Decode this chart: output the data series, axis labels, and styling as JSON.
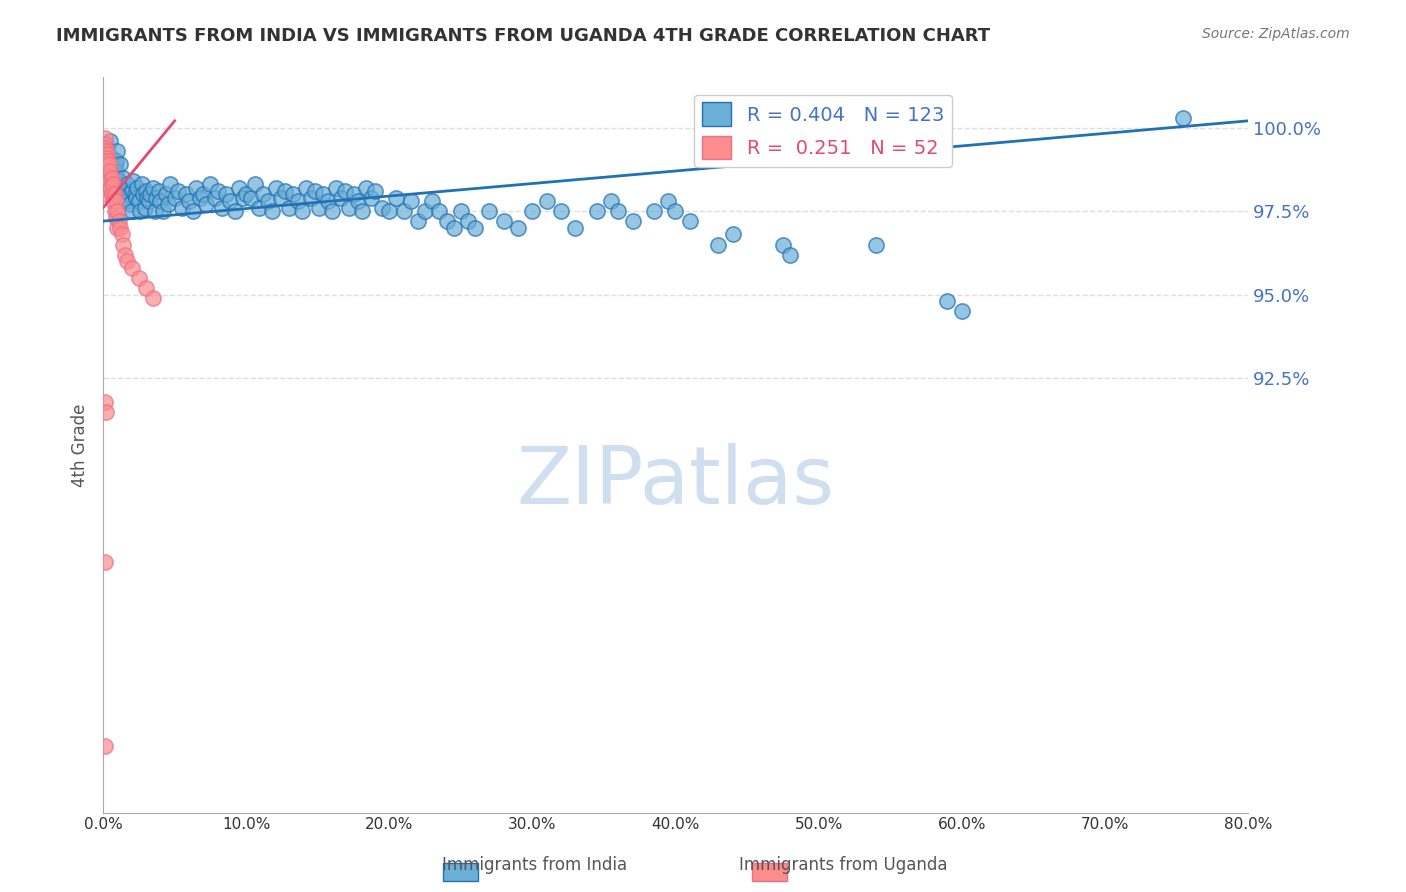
{
  "title": "IMMIGRANTS FROM INDIA VS IMMIGRANTS FROM UGANDA 4TH GRADE CORRELATION CHART",
  "source": "Source: ZipAtlas.com",
  "xlabel": "",
  "ylabel": "4th Grade",
  "legend_labels": [
    "Immigrants from India",
    "Immigrants from Uganda"
  ],
  "blue_color": "#6baed6",
  "pink_color": "#fc8d8d",
  "blue_line_color": "#2171b5",
  "pink_line_color": "#e34a6f",
  "blue_R": 0.404,
  "blue_N": 123,
  "pink_R": 0.251,
  "pink_N": 52,
  "x_ticks": [
    0.0,
    10.0,
    20.0,
    30.0,
    40.0,
    50.0,
    60.0,
    70.0,
    80.0
  ],
  "x_tick_labels": [
    "0.0%",
    "10.0%",
    "20.0%",
    "30.0%",
    "40.0%",
    "50.0%",
    "60.0%",
    "70.0%",
    "80.0%"
  ],
  "xlim": [
    0.0,
    80.0
  ],
  "ylim": [
    79.5,
    101.5
  ],
  "grid_color": "#dddddd",
  "right_axis_color": "#4472c4",
  "title_color": "#333333",
  "watermark": "ZIPatlas",
  "watermark_color": "#d0dff0",
  "blue_points": [
    [
      0.3,
      99.4
    ],
    [
      0.5,
      99.6
    ],
    [
      0.6,
      99.1
    ],
    [
      0.8,
      98.9
    ],
    [
      0.9,
      99.0
    ],
    [
      0.9,
      98.7
    ],
    [
      1.0,
      98.2
    ],
    [
      1.0,
      99.3
    ],
    [
      1.1,
      98.4
    ],
    [
      1.2,
      98.9
    ],
    [
      1.2,
      98.2
    ],
    [
      1.3,
      98.0
    ],
    [
      1.4,
      98.5
    ],
    [
      1.5,
      98.1
    ],
    [
      1.5,
      97.9
    ],
    [
      1.6,
      97.8
    ],
    [
      1.7,
      98.3
    ],
    [
      1.8,
      98.0
    ],
    [
      1.9,
      97.7
    ],
    [
      2.0,
      98.1
    ],
    [
      2.0,
      97.5
    ],
    [
      2.1,
      98.4
    ],
    [
      2.2,
      98.0
    ],
    [
      2.3,
      97.9
    ],
    [
      2.4,
      98.2
    ],
    [
      2.5,
      97.8
    ],
    [
      2.6,
      97.5
    ],
    [
      2.7,
      98.3
    ],
    [
      2.8,
      98.0
    ],
    [
      2.9,
      97.6
    ],
    [
      3.0,
      98.1
    ],
    [
      3.1,
      97.9
    ],
    [
      3.2,
      97.8
    ],
    [
      3.3,
      98.0
    ],
    [
      3.5,
      98.2
    ],
    [
      3.6,
      97.5
    ],
    [
      3.7,
      97.9
    ],
    [
      3.9,
      98.1
    ],
    [
      4.0,
      97.8
    ],
    [
      4.2,
      97.5
    ],
    [
      4.4,
      98.0
    ],
    [
      4.5,
      97.7
    ],
    [
      4.7,
      98.3
    ],
    [
      5.0,
      97.9
    ],
    [
      5.2,
      98.1
    ],
    [
      5.5,
      97.6
    ],
    [
      5.8,
      98.0
    ],
    [
      6.0,
      97.8
    ],
    [
      6.3,
      97.5
    ],
    [
      6.5,
      98.2
    ],
    [
      6.8,
      97.9
    ],
    [
      7.0,
      98.0
    ],
    [
      7.2,
      97.7
    ],
    [
      7.5,
      98.3
    ],
    [
      7.8,
      97.9
    ],
    [
      8.0,
      98.1
    ],
    [
      8.3,
      97.6
    ],
    [
      8.6,
      98.0
    ],
    [
      8.9,
      97.8
    ],
    [
      9.2,
      97.5
    ],
    [
      9.5,
      98.2
    ],
    [
      9.8,
      97.9
    ],
    [
      10.0,
      98.0
    ],
    [
      10.3,
      97.9
    ],
    [
      10.6,
      98.3
    ],
    [
      10.9,
      97.6
    ],
    [
      11.2,
      98.0
    ],
    [
      11.5,
      97.8
    ],
    [
      11.8,
      97.5
    ],
    [
      12.1,
      98.2
    ],
    [
      12.4,
      97.9
    ],
    [
      12.7,
      98.1
    ],
    [
      13.0,
      97.6
    ],
    [
      13.3,
      98.0
    ],
    [
      13.6,
      97.8
    ],
    [
      13.9,
      97.5
    ],
    [
      14.2,
      98.2
    ],
    [
      14.5,
      97.9
    ],
    [
      14.8,
      98.1
    ],
    [
      15.1,
      97.6
    ],
    [
      15.4,
      98.0
    ],
    [
      15.7,
      97.8
    ],
    [
      16.0,
      97.5
    ],
    [
      16.3,
      98.2
    ],
    [
      16.6,
      97.9
    ],
    [
      16.9,
      98.1
    ],
    [
      17.2,
      97.6
    ],
    [
      17.5,
      98.0
    ],
    [
      17.8,
      97.8
    ],
    [
      18.1,
      97.5
    ],
    [
      18.4,
      98.2
    ],
    [
      18.7,
      97.9
    ],
    [
      19.0,
      98.1
    ],
    [
      19.5,
      97.6
    ],
    [
      20.0,
      97.5
    ],
    [
      20.5,
      97.9
    ],
    [
      21.0,
      97.5
    ],
    [
      21.5,
      97.8
    ],
    [
      22.0,
      97.2
    ],
    [
      22.5,
      97.5
    ],
    [
      23.0,
      97.8
    ],
    [
      23.5,
      97.5
    ],
    [
      24.0,
      97.2
    ],
    [
      24.5,
      97.0
    ],
    [
      25.0,
      97.5
    ],
    [
      25.5,
      97.2
    ],
    [
      26.0,
      97.0
    ],
    [
      27.0,
      97.5
    ],
    [
      28.0,
      97.2
    ],
    [
      29.0,
      97.0
    ],
    [
      30.0,
      97.5
    ],
    [
      31.0,
      97.8
    ],
    [
      32.0,
      97.5
    ],
    [
      33.0,
      97.0
    ],
    [
      34.5,
      97.5
    ],
    [
      35.5,
      97.8
    ],
    [
      36.0,
      97.5
    ],
    [
      37.0,
      97.2
    ],
    [
      38.5,
      97.5
    ],
    [
      39.5,
      97.8
    ],
    [
      40.0,
      97.5
    ],
    [
      41.0,
      97.2
    ],
    [
      43.0,
      96.5
    ],
    [
      44.0,
      96.8
    ],
    [
      47.5,
      96.5
    ],
    [
      48.0,
      96.2
    ],
    [
      54.0,
      96.5
    ],
    [
      59.0,
      94.8
    ],
    [
      60.0,
      94.5
    ],
    [
      75.5,
      100.3
    ]
  ],
  "pink_points": [
    [
      0.1,
      99.7
    ],
    [
      0.1,
      99.5
    ],
    [
      0.1,
      99.3
    ],
    [
      0.1,
      99.0
    ],
    [
      0.1,
      98.7
    ],
    [
      0.1,
      98.5
    ],
    [
      0.15,
      99.4
    ],
    [
      0.15,
      99.1
    ],
    [
      0.15,
      98.8
    ],
    [
      0.15,
      98.5
    ],
    [
      0.15,
      98.2
    ],
    [
      0.2,
      99.3
    ],
    [
      0.2,
      99.0
    ],
    [
      0.2,
      98.7
    ],
    [
      0.2,
      98.4
    ],
    [
      0.2,
      98.0
    ],
    [
      0.25,
      99.2
    ],
    [
      0.25,
      98.9
    ],
    [
      0.25,
      98.6
    ],
    [
      0.3,
      99.1
    ],
    [
      0.3,
      98.7
    ],
    [
      0.3,
      98.3
    ],
    [
      0.35,
      99.0
    ],
    [
      0.35,
      98.5
    ],
    [
      0.4,
      98.9
    ],
    [
      0.4,
      98.4
    ],
    [
      0.5,
      98.7
    ],
    [
      0.5,
      98.2
    ],
    [
      0.6,
      98.5
    ],
    [
      0.6,
      98.0
    ],
    [
      0.7,
      98.3
    ],
    [
      0.7,
      97.8
    ],
    [
      0.8,
      98.0
    ],
    [
      0.8,
      97.5
    ],
    [
      0.9,
      97.8
    ],
    [
      0.9,
      97.3
    ],
    [
      1.0,
      97.5
    ],
    [
      1.0,
      97.0
    ],
    [
      1.1,
      97.2
    ],
    [
      1.2,
      97.0
    ],
    [
      1.3,
      96.8
    ],
    [
      1.4,
      96.5
    ],
    [
      1.5,
      96.2
    ],
    [
      1.7,
      96.0
    ],
    [
      2.0,
      95.8
    ],
    [
      2.5,
      95.5
    ],
    [
      3.0,
      95.2
    ],
    [
      3.5,
      94.9
    ],
    [
      0.15,
      91.8
    ],
    [
      0.18,
      91.5
    ],
    [
      0.12,
      87.0
    ],
    [
      0.1,
      81.5
    ]
  ],
  "blue_trend_x": [
    0.0,
    80.0
  ],
  "blue_trend_y": [
    97.2,
    100.2
  ],
  "pink_trend_x": [
    0.0,
    5.0
  ],
  "pink_trend_y": [
    97.6,
    100.2
  ]
}
